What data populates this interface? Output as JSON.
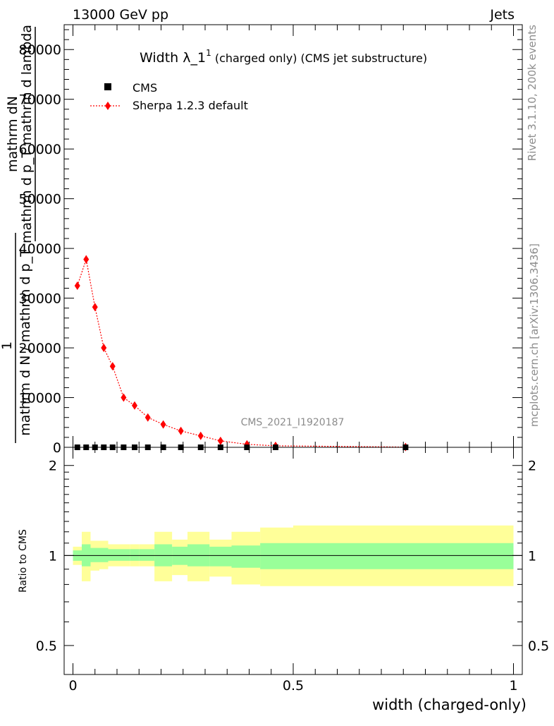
{
  "header": {
    "left": "13000 GeV pp",
    "right": "Jets"
  },
  "side_labels": {
    "rivet": "Rivet 3.1.10,  200k events",
    "mcplots": "mcplots.cern.ch [arXiv:1306.3436]"
  },
  "watermark": "CMS_2021_I1920187",
  "chart_data": [
    {
      "type": "scatter",
      "panel": "main",
      "title_parts": [
        "Width ",
        "λ_1",
        "1",
        " (charged only) (CMS jet substructure)"
      ],
      "ylabel_top": "mathrm dN",
      "ylabel_top2": "mathrm d p_T mathrm d lambda",
      "ylabel_num": "1",
      "ylabel_den": "mathrm d N / mathrm d p_T",
      "xlim": [
        -0.02,
        1.02
      ],
      "ylim": [
        0,
        85000
      ],
      "yticks": [
        0,
        10000,
        20000,
        30000,
        40000,
        50000,
        60000,
        70000,
        80000
      ],
      "ytick_labels": [
        "0",
        "10000",
        "20000",
        "30000",
        "40000",
        "50000",
        "60000",
        "70000",
        "80000"
      ],
      "legend_position": "top-left",
      "series": [
        {
          "name": "CMS",
          "color": "#000000",
          "marker": "square",
          "x": [
            0.01,
            0.03,
            0.05,
            0.07,
            0.09,
            0.115,
            0.14,
            0.17,
            0.205,
            0.245,
            0.29,
            0.335,
            0.395,
            0.46,
            0.755
          ],
          "y": [
            0,
            0,
            0,
            0,
            0,
            0,
            0,
            0,
            0,
            0,
            0,
            0,
            0,
            0,
            0
          ]
        },
        {
          "name": "Sherpa 1.2.3 default",
          "color": "#ff0000",
          "marker": "diamond",
          "line": "dotted",
          "x": [
            0.01,
            0.03,
            0.05,
            0.07,
            0.09,
            0.115,
            0.14,
            0.17,
            0.205,
            0.245,
            0.29,
            0.335,
            0.395,
            0.46,
            0.755
          ],
          "y": [
            32500,
            37800,
            28200,
            20000,
            16300,
            10000,
            8400,
            6000,
            4600,
            3300,
            2300,
            1300,
            600,
            300,
            50
          ],
          "yerr": [
            700,
            800,
            600,
            500,
            500,
            350,
            300,
            250,
            200,
            150,
            120,
            100,
            60,
            40,
            10
          ]
        }
      ]
    },
    {
      "type": "area",
      "panel": "ratio",
      "ylabel": "Ratio to CMS",
      "xlim": [
        -0.02,
        1.02
      ],
      "ylim": [
        0.4,
        2.3
      ],
      "scale": "log",
      "yticks": [
        0.5,
        1,
        2
      ],
      "ytick_labels": [
        "0.5",
        "1",
        "2"
      ],
      "xticks": [
        0,
        0.5,
        1
      ],
      "xtick_labels": [
        "0",
        "0.5",
        "1"
      ],
      "xlabel": "width (charged-only)",
      "bin_edges": [
        0.0,
        0.02,
        0.04,
        0.06,
        0.08,
        0.1,
        0.13,
        0.15,
        0.185,
        0.225,
        0.26,
        0.31,
        0.36,
        0.425,
        0.5,
        1.0
      ],
      "bands": [
        {
          "name": "stat",
          "color": "#99ff99",
          "lo": [
            0.96,
            0.92,
            0.95,
            0.95,
            0.96,
            0.96,
            0.96,
            0.96,
            0.92,
            0.93,
            0.92,
            0.92,
            0.91,
            0.9,
            0.9
          ],
          "hi": [
            1.04,
            1.09,
            1.06,
            1.06,
            1.05,
            1.05,
            1.05,
            1.05,
            1.09,
            1.07,
            1.09,
            1.07,
            1.08,
            1.1,
            1.1
          ]
        },
        {
          "name": "total",
          "color": "#ffff99",
          "lo": [
            0.93,
            0.82,
            0.89,
            0.9,
            0.92,
            0.92,
            0.92,
            0.92,
            0.82,
            0.86,
            0.82,
            0.85,
            0.8,
            0.79,
            0.79
          ],
          "hi": [
            1.07,
            1.2,
            1.12,
            1.12,
            1.09,
            1.09,
            1.09,
            1.09,
            1.2,
            1.13,
            1.2,
            1.13,
            1.2,
            1.24,
            1.26
          ]
        }
      ],
      "reference": 1
    }
  ]
}
